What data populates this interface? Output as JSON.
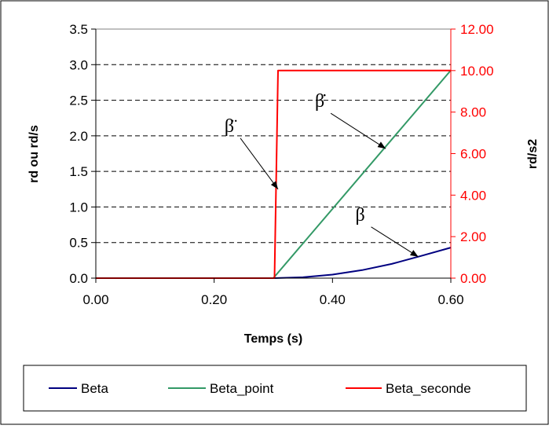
{
  "chart_data": {
    "type": "line",
    "xlabel": "Temps (s)",
    "ylabel_left": "rd ou rd/s",
    "ylabel_right": "rd/s2",
    "xlim": [
      0,
      0.6
    ],
    "ylim_left": [
      0,
      3.5
    ],
    "ylim_right": [
      0,
      12
    ],
    "x_ticks": [
      "0.00",
      "0.20",
      "0.40",
      "0.60"
    ],
    "y_left_ticks": [
      "0.0",
      "0.5",
      "1.0",
      "1.5",
      "2.0",
      "2.5",
      "3.0",
      "3.5"
    ],
    "y_right_ticks": [
      "0.00",
      "2.00",
      "4.00",
      "6.00",
      "8.00",
      "10.00",
      "12.00"
    ],
    "grid": "horizontal-dashed",
    "legend_position": "bottom",
    "series": [
      {
        "name": "Beta",
        "axis": "left",
        "color": "#000080",
        "x": [
          0.0,
          0.3,
          0.35,
          0.4,
          0.45,
          0.5,
          0.55,
          0.6
        ],
        "y": [
          0.0,
          0.0,
          0.0125,
          0.05,
          0.1125,
          0.2,
          0.3125,
          0.43
        ]
      },
      {
        "name": "Beta_point",
        "axis": "left",
        "color": "#339966",
        "x": [
          0.0,
          0.3,
          0.6
        ],
        "y": [
          0.0,
          0.0,
          2.92
        ]
      },
      {
        "name": "Beta_seconde",
        "axis": "right",
        "color": "#ff0000",
        "x": [
          0.0,
          0.302,
          0.308,
          0.6
        ],
        "y": [
          0.0,
          0.0,
          10.0,
          10.0
        ]
      }
    ],
    "annotations": [
      {
        "label": "β̈",
        "target_series": "Beta_seconde",
        "target": [
          0.308,
          1.25
        ]
      },
      {
        "label": "β̇",
        "target_series": "Beta_point",
        "target": [
          0.49,
          1.82
        ]
      },
      {
        "label": "β",
        "target_series": "Beta",
        "target": [
          0.545,
          0.3
        ]
      }
    ]
  }
}
